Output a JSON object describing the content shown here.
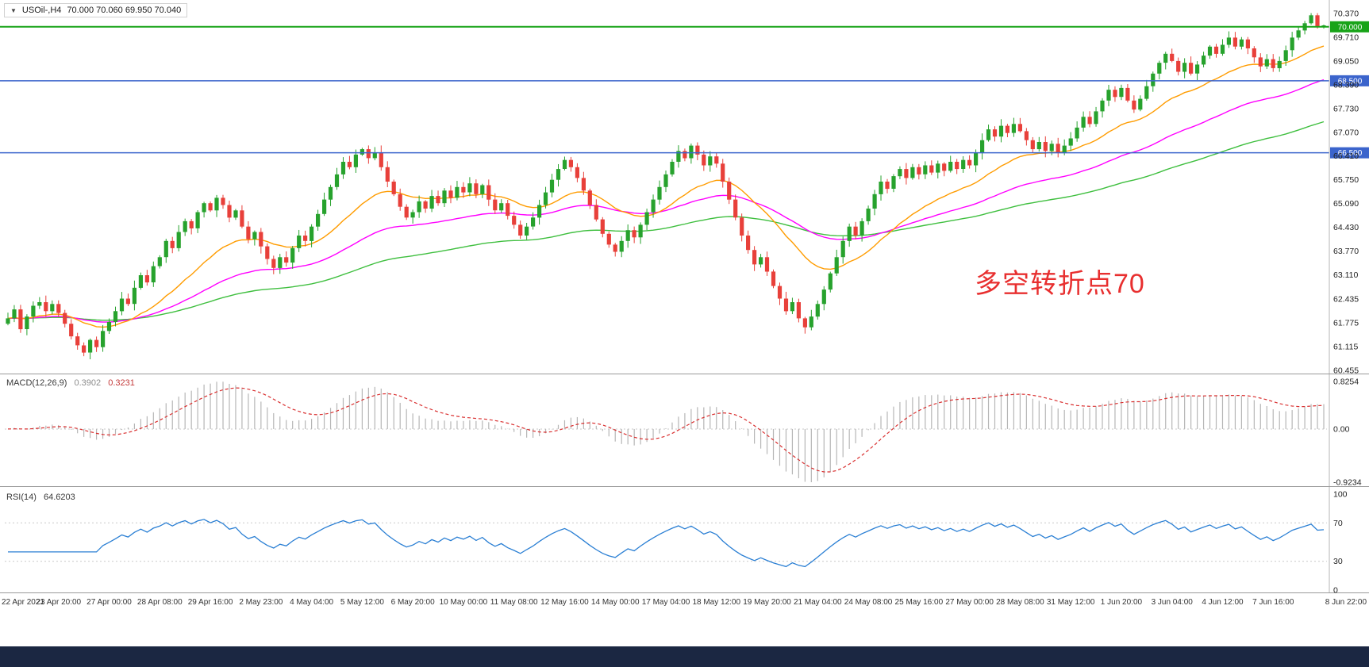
{
  "header": {
    "symbol": "USOil-,H4",
    "ohlc": "70.000 70.060 69.950 70.040"
  },
  "chart_data": {
    "type": "candlestick",
    "symbol": "USOil",
    "timeframe": "H4",
    "current_bar": {
      "open": 70.0,
      "high": 70.06,
      "low": 69.95,
      "close": 70.04
    },
    "closes": [
      61.9,
      62.15,
      61.6,
      61.95,
      62.25,
      62.35,
      62.1,
      62.3,
      62.05,
      61.75,
      61.4,
      61.15,
      60.95,
      61.3,
      61.1,
      61.55,
      61.8,
      62.1,
      62.45,
      62.3,
      62.75,
      63.1,
      62.9,
      63.35,
      63.6,
      64.05,
      63.85,
      64.3,
      64.6,
      64.4,
      64.85,
      65.1,
      64.9,
      65.25,
      65.05,
      64.7,
      64.9,
      64.45,
      64.1,
      64.3,
      63.9,
      63.55,
      63.3,
      63.6,
      63.45,
      63.85,
      64.2,
      64.05,
      64.45,
      64.8,
      65.2,
      65.55,
      65.9,
      66.25,
      66.1,
      66.45,
      66.6,
      66.35,
      66.5,
      66.1,
      65.7,
      65.35,
      65.0,
      64.7,
      64.85,
      65.15,
      64.95,
      65.3,
      65.1,
      65.45,
      65.25,
      65.55,
      65.4,
      65.65,
      65.35,
      65.6,
      65.2,
      64.9,
      65.1,
      64.75,
      64.5,
      64.2,
      64.45,
      64.7,
      65.05,
      65.4,
      65.75,
      66.05,
      66.3,
      66.1,
      65.8,
      65.45,
      65.05,
      64.65,
      64.25,
      63.95,
      63.75,
      64.05,
      64.35,
      64.15,
      64.5,
      64.85,
      65.2,
      65.55,
      65.9,
      66.25,
      66.55,
      66.35,
      66.7,
      66.45,
      66.15,
      66.4,
      66.2,
      65.7,
      65.2,
      64.7,
      64.2,
      63.8,
      63.4,
      63.6,
      63.2,
      62.8,
      62.45,
      62.1,
      62.35,
      61.9,
      61.65,
      61.95,
      62.3,
      62.7,
      63.15,
      63.6,
      64.05,
      64.45,
      64.2,
      64.6,
      64.95,
      65.35,
      65.7,
      65.5,
      65.85,
      66.05,
      65.8,
      66.1,
      65.9,
      66.15,
      65.95,
      66.2,
      66.0,
      66.25,
      66.05,
      66.3,
      66.15,
      66.5,
      66.85,
      67.15,
      66.95,
      67.25,
      67.05,
      67.3,
      67.1,
      66.85,
      66.6,
      66.8,
      66.55,
      66.75,
      66.5,
      66.7,
      66.9,
      67.2,
      67.5,
      67.3,
      67.65,
      67.95,
      68.25,
      68.05,
      68.3,
      67.95,
      67.7,
      68.0,
      68.35,
      68.7,
      69.0,
      69.25,
      69.05,
      68.75,
      69.0,
      68.7,
      68.95,
      69.2,
      69.45,
      69.25,
      69.5,
      69.7,
      69.45,
      69.65,
      69.4,
      69.15,
      68.9,
      69.1,
      68.85,
      69.05,
      69.35,
      69.7,
      69.9,
      70.1,
      70.32,
      70.0,
      70.04
    ],
    "date_labels": [
      "22 Apr 2021",
      "23 Apr 20:00",
      "27 Apr 00:00",
      "28 Apr 08:00",
      "29 Apr 16:00",
      "2 May 23:00",
      "4 May 04:00",
      "5 May 12:00",
      "6 May 20:00",
      "10 May 00:00",
      "11 May 08:00",
      "12 May 16:00",
      "14 May 00:00",
      "17 May 04:00",
      "18 May 12:00",
      "19 May 20:00",
      "21 May 04:00",
      "24 May 08:00",
      "25 May 16:00",
      "27 May 00:00",
      "28 May 08:00",
      "31 May 12:00",
      "1 Jun 20:00",
      "3 Jun 04:00",
      "4 Jun 12:00",
      "7 Jun 16:00",
      "8 Jun 22:00"
    ],
    "price_ticks": [
      70.37,
      69.71,
      69.05,
      68.39,
      67.73,
      67.07,
      66.41,
      65.75,
      65.09,
      64.43,
      63.77,
      63.11,
      62.435,
      61.775,
      61.115,
      60.455
    ],
    "hlines": [
      {
        "price": 70.0,
        "color": "#17a317",
        "tag": "70.000",
        "width": 2
      },
      {
        "price": 68.5,
        "color": "#3b64cc",
        "tag": "68.500",
        "width": 1.5
      },
      {
        "price": 66.5,
        "color": "#3b64cc",
        "tag": "66.500",
        "width": 1.5
      }
    ],
    "annotation": {
      "text": "多空转折点70",
      "color": "#e82f2f"
    },
    "macd": {
      "label": "MACD(12,26,9)",
      "main_value": "0.3902",
      "signal_value": "0.3231",
      "axis": [
        "0.8254",
        "0.00",
        "-0.9234"
      ],
      "axis_values": [
        0.8254,
        0.0,
        -0.9234
      ],
      "params": [
        12,
        26,
        9
      ]
    },
    "rsi": {
      "label": "RSI(14)",
      "value": "64.6203",
      "axis": [
        "100",
        "70",
        "30",
        "0"
      ],
      "axis_values": [
        100,
        70,
        30,
        0
      ],
      "levels": [
        70,
        30
      ],
      "period": 14
    },
    "colors": {
      "up": "#27a22d",
      "down": "#e8403a",
      "ma_fast": "#ff9c00",
      "ma_mid": "#ff00ff",
      "ma_slow": "#3fbf3f",
      "macd_hist": "#b6b6b6",
      "macd_signal": "#d93030",
      "rsi_line": "#2a7fd4",
      "hline_green": "#17a317",
      "hline_blue": "#3b64cc"
    }
  }
}
